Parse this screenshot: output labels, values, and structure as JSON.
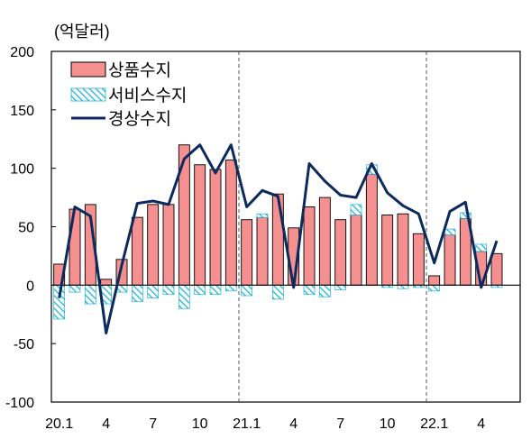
{
  "chart_data": {
    "type": "bar",
    "unit_label": "(억달러)",
    "ylim": [
      -100,
      200
    ],
    "yticks": [
      "200",
      "150",
      "100",
      "50",
      "0",
      "-50",
      "-100"
    ],
    "ytick_values": [
      200,
      150,
      100,
      50,
      0,
      -50,
      -100
    ],
    "xtick_labels": [
      {
        "index": 0,
        "label": "20.1"
      },
      {
        "index": 3,
        "label": "4"
      },
      {
        "index": 6,
        "label": "7"
      },
      {
        "index": 9,
        "label": "10"
      },
      {
        "index": 12,
        "label": "21.1"
      },
      {
        "index": 15,
        "label": "4"
      },
      {
        "index": 18,
        "label": "7"
      },
      {
        "index": 21,
        "label": "10"
      },
      {
        "index": 24,
        "label": "22.1"
      },
      {
        "index": 27,
        "label": "4"
      }
    ],
    "year_divider_indices": [
      12,
      24
    ],
    "series": [
      {
        "name": "상품수지",
        "kind": "bar",
        "color": "#f4908f",
        "values": [
          18,
          65,
          69,
          5,
          22,
          58,
          69,
          69,
          120,
          103,
          99,
          107,
          56,
          58,
          78,
          49,
          67,
          75,
          56,
          60,
          95,
          60,
          61,
          44,
          8,
          43,
          57,
          29,
          27
        ]
      },
      {
        "name": "서비스수지",
        "kind": "hatched-bar",
        "color": "#1fb4d8",
        "values": [
          -29,
          -6,
          -16,
          -16,
          -6,
          -14,
          -11,
          -8,
          -20,
          -8,
          -8,
          -5,
          -9,
          3,
          -12,
          0,
          -8,
          -10,
          -4,
          9,
          8,
          -2,
          -3,
          -2,
          -5,
          5,
          5,
          6,
          -2
        ]
      },
      {
        "name": "경상수지",
        "kind": "line",
        "color": "#0d2a5e",
        "values": [
          -11,
          67,
          59,
          -41,
          17,
          70,
          72,
          69,
          108,
          120,
          96,
          120,
          67,
          81,
          76,
          -2,
          104,
          89,
          77,
          75,
          104,
          79,
          68,
          61,
          19,
          63,
          71,
          -2,
          38
        ]
      }
    ],
    "legend_position": "top-left",
    "grid": false
  }
}
